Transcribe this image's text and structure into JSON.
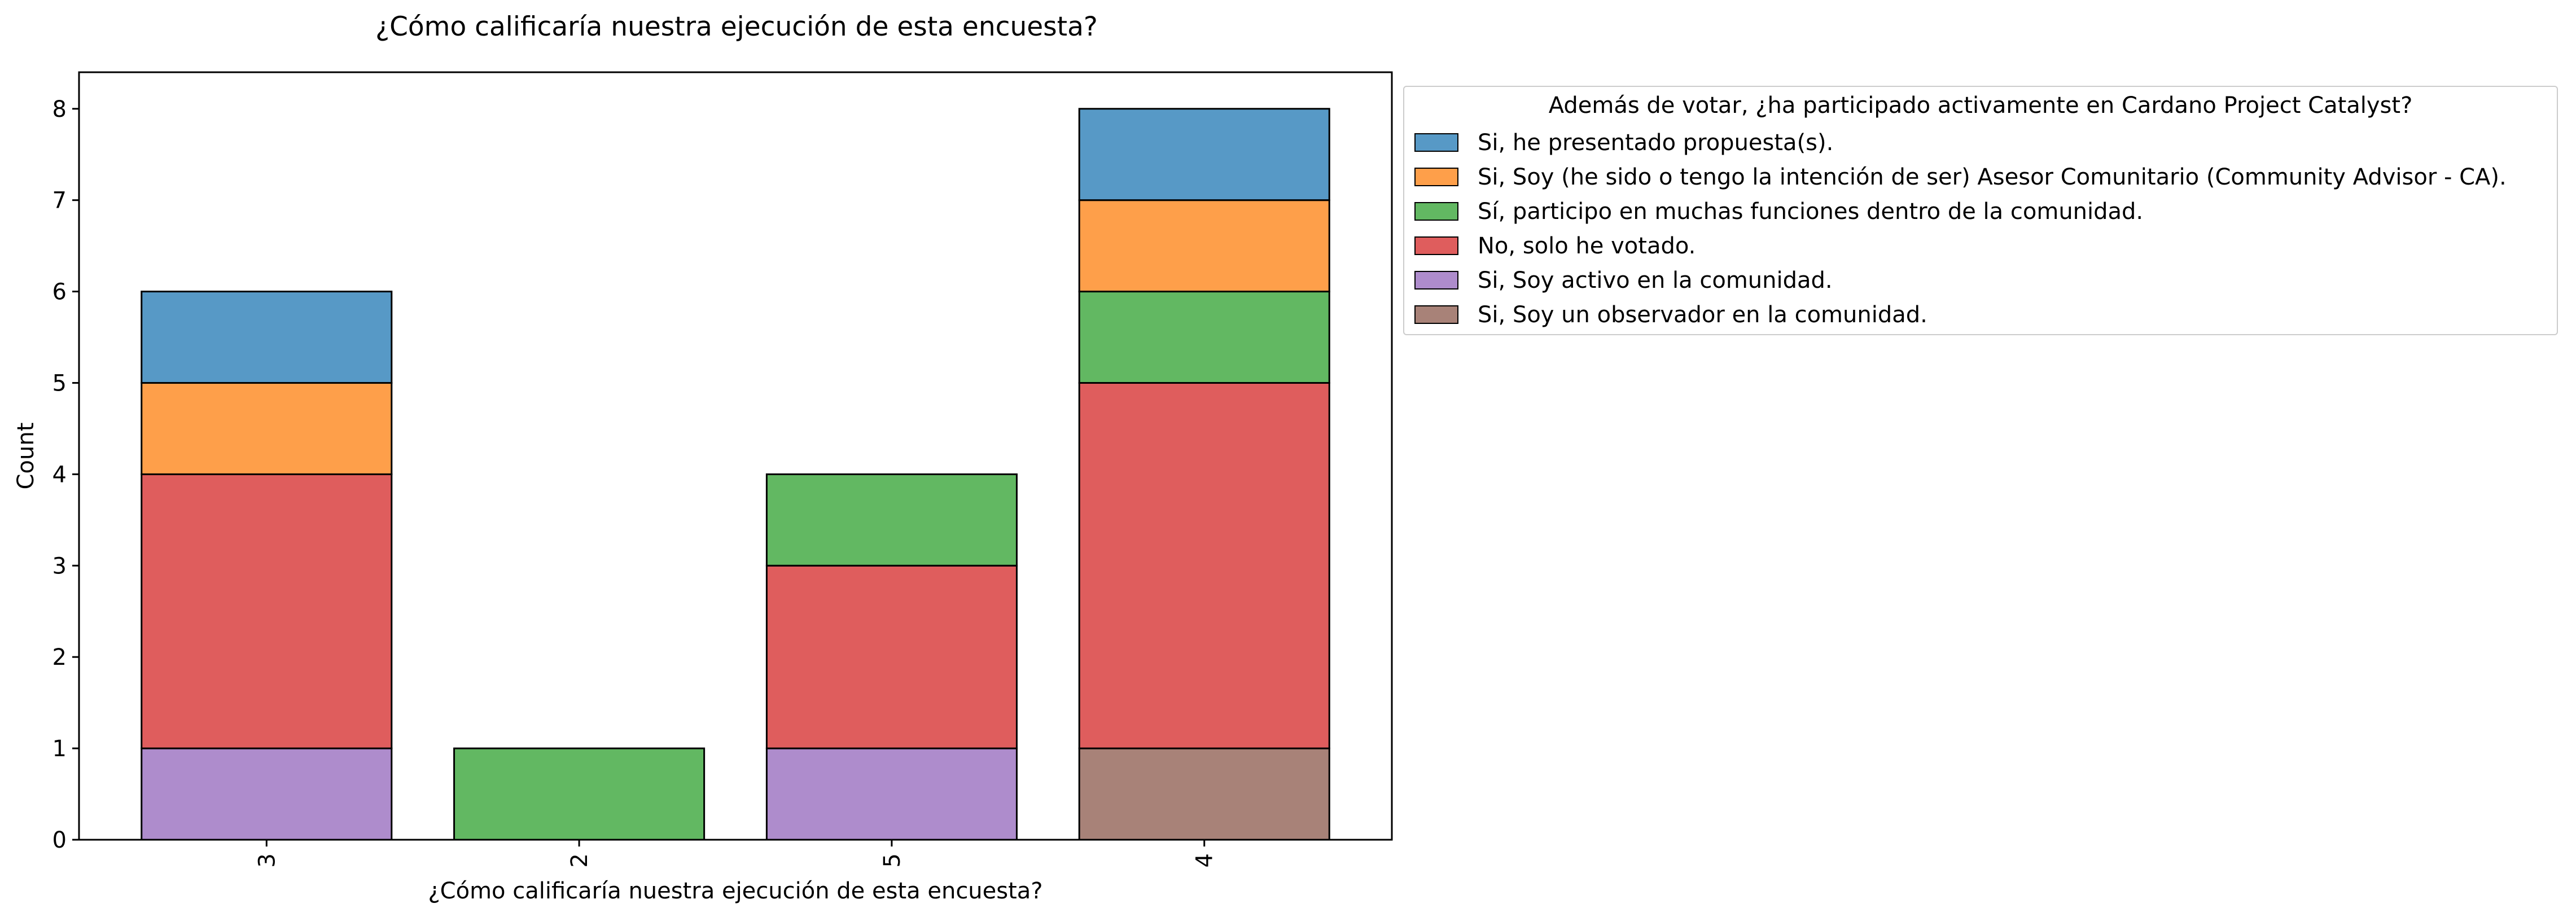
{
  "chart_data": {
    "type": "bar",
    "stacked": true,
    "title": "¿Cómo calificaría nuestra ejecución de esta encuesta?",
    "xlabel": "¿Cómo calificaría nuestra ejecución de esta encuesta?",
    "ylabel": "Count",
    "categories": [
      "3",
      "2",
      "5",
      "4"
    ],
    "ylim": [
      0,
      8.4
    ],
    "yticks": [
      0,
      1,
      2,
      3,
      4,
      5,
      6,
      7,
      8
    ],
    "grid": false,
    "legend": {
      "title": "Además de votar, ¿ha participado activamente en Cardano Project Catalyst?",
      "placement": "outside-right-top"
    },
    "series": [
      {
        "name": "Si, Soy un observador en la comunidad.",
        "color": "#a88278",
        "values": [
          0,
          0,
          0,
          1
        ]
      },
      {
        "name": "Si, Soy activo en la comunidad.",
        "color": "#ae8ccc",
        "values": [
          1,
          0,
          1,
          0
        ]
      },
      {
        "name": "No, solo he votado.",
        "color": "#df5d5d",
        "values": [
          3,
          0,
          2,
          4
        ]
      },
      {
        "name": "Sí, participo en muchas funciones dentro de la comunidad.",
        "color": "#62b862",
        "values": [
          0,
          1,
          1,
          1
        ]
      },
      {
        "name": "Si, Soy (he sido o tengo la intención de ser) Asesor Comunitario (Community Advisor - CA).",
        "color": "#fe9f4a",
        "values": [
          1,
          0,
          0,
          1
        ]
      },
      {
        "name": "Si, he presentado propuesta(s).",
        "color": "#5799c6",
        "values": [
          1,
          0,
          0,
          1
        ]
      }
    ]
  }
}
